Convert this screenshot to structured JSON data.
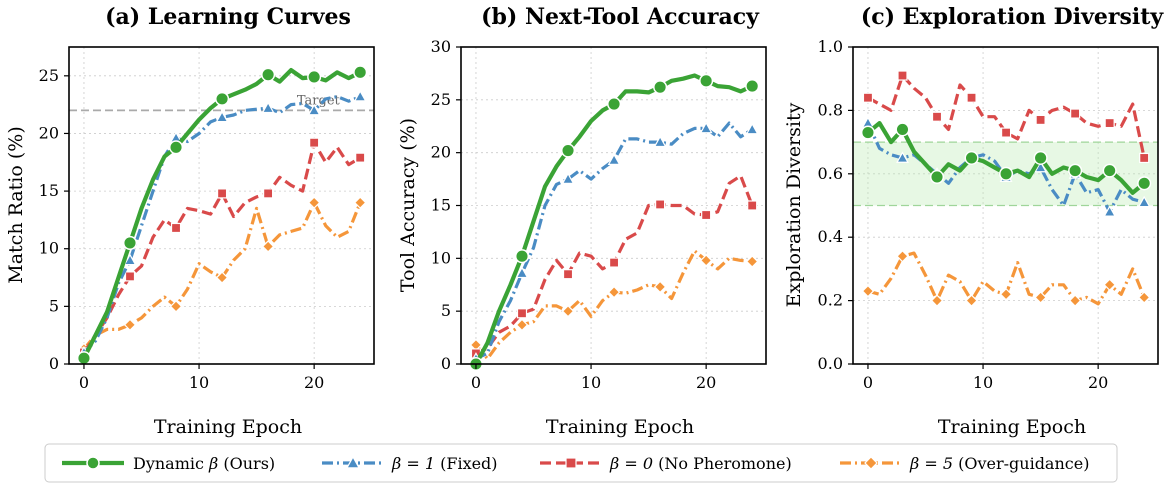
{
  "colors": {
    "dynamic": "#3aa335",
    "fixed": "#4a8cc4",
    "nophero": "#d94a4a",
    "over": "#f5963a",
    "target": "#aaaaaa",
    "band": "#b9eab1"
  },
  "legend": {
    "items": [
      {
        "key": "dynamic",
        "symbol": "Dynamic ",
        "math": "β",
        "note": " (Ours)",
        "marker": "circle",
        "dash": "solid"
      },
      {
        "key": "fixed",
        "symbol": "",
        "math": "β = 1",
        "note": " (Fixed)",
        "marker": "triangle",
        "dash": "dashdot"
      },
      {
        "key": "nophero",
        "symbol": "",
        "math": "β = 0",
        "note": " (No Pheromone)",
        "marker": "square",
        "dash": "dashed"
      },
      {
        "key": "over",
        "symbol": "",
        "math": "β = 5",
        "note": " (Over-guidance)",
        "marker": "diamond",
        "dash": "dashdot"
      }
    ]
  },
  "chart_data": [
    {
      "type": "line",
      "title": "(a) Learning Curves",
      "xlabel": "Training Epoch",
      "ylabel": "Match Ratio (%)",
      "xlim": [
        -1.3,
        25.2
      ],
      "ylim": [
        0,
        27.5
      ],
      "xticks": [
        0,
        10,
        20
      ],
      "yticks": [
        0,
        5,
        10,
        15,
        20,
        25
      ],
      "grid": true,
      "target": {
        "y": 22,
        "label": "Target"
      },
      "x": [
        0,
        1,
        2,
        3,
        4,
        5,
        6,
        7,
        8,
        9,
        10,
        11,
        12,
        13,
        14,
        15,
        16,
        17,
        18,
        19,
        20,
        21,
        22,
        23,
        24
      ],
      "series": [
        {
          "key": "dynamic",
          "markers_every": 4,
          "values": [
            0.5,
            2.5,
            4.5,
            7.5,
            10.5,
            13.5,
            16,
            18,
            18.8,
            20,
            21.2,
            22.2,
            23,
            23.4,
            23.8,
            24.3,
            25.1,
            24.5,
            25.5,
            24.8,
            24.9,
            24.6,
            25.3,
            24.8,
            25.3
          ]
        },
        {
          "key": "fixed",
          "markers_every": 4,
          "values": [
            1,
            2,
            4,
            7,
            9,
            12,
            15,
            18,
            19.6,
            19.3,
            20,
            21,
            21.4,
            21.6,
            22,
            22.1,
            22.2,
            21.8,
            22.5,
            22.6,
            22,
            23,
            23.2,
            22.8,
            23.2
          ]
        },
        {
          "key": "nophero",
          "markers_every": 4,
          "values": [
            1,
            2.5,
            4,
            6,
            7.6,
            8.5,
            11,
            12.5,
            11.8,
            13.5,
            13.3,
            13,
            14.8,
            12.8,
            14,
            14.5,
            14.8,
            16.2,
            15.5,
            15,
            19.2,
            17.5,
            18.8,
            17.3,
            17.9
          ]
        },
        {
          "key": "over",
          "markers_every": 4,
          "values": [
            1.3,
            2.5,
            3,
            3,
            3.4,
            4,
            5,
            5.8,
            5,
            6.5,
            8.7,
            8,
            7.5,
            9,
            10,
            13.5,
            10.2,
            11.2,
            11.5,
            11.8,
            14,
            12,
            11,
            11.5,
            14
          ]
        }
      ]
    },
    {
      "type": "line",
      "title": "(b) Next-Tool Accuracy",
      "xlabel": "Training Epoch",
      "ylabel": "Tool Accuracy (%)",
      "xlim": [
        -1.3,
        25.2
      ],
      "ylim": [
        0,
        30
      ],
      "xticks": [
        0,
        10,
        20
      ],
      "yticks": [
        0,
        5,
        10,
        15,
        20,
        25,
        30
      ],
      "grid": true,
      "x": [
        0,
        1,
        2,
        3,
        4,
        5,
        6,
        7,
        8,
        9,
        10,
        11,
        12,
        13,
        14,
        15,
        16,
        17,
        18,
        19,
        20,
        21,
        22,
        23,
        24
      ],
      "series": [
        {
          "key": "dynamic",
          "markers_every": 4,
          "values": [
            0,
            2,
            5,
            7.5,
            10.2,
            13.5,
            16.8,
            18.7,
            20.2,
            21.5,
            23,
            24,
            24.6,
            25.8,
            25.8,
            25.7,
            26.2,
            26.8,
            27,
            27.3,
            26.8,
            26.3,
            26.2,
            25.8,
            26.3
          ]
        },
        {
          "key": "fixed",
          "markers_every": 4,
          "values": [
            0.5,
            1,
            4,
            6,
            8.6,
            11,
            15,
            17,
            17.5,
            18.3,
            17.5,
            18.5,
            19.3,
            21.3,
            21.3,
            21,
            21,
            20.8,
            21.8,
            22.3,
            22.3,
            21.5,
            22.8,
            21.5,
            22.2
          ]
        },
        {
          "key": "nophero",
          "markers_every": 4,
          "values": [
            1,
            1.5,
            3,
            3.6,
            4.8,
            5.2,
            8,
            9.8,
            8.5,
            10.5,
            10.2,
            9,
            9.6,
            11.8,
            12.4,
            15,
            15.1,
            15,
            15,
            14.2,
            14.1,
            14.4,
            17.1,
            17.8,
            15
          ]
        },
        {
          "key": "over",
          "markers_every": 4,
          "values": [
            1.8,
            0.5,
            2,
            3,
            3.7,
            4,
            5.5,
            5.5,
            5,
            6,
            4.5,
            6,
            6.8,
            6.7,
            7,
            7.5,
            7.3,
            6.2,
            8.6,
            10.7,
            9.8,
            9,
            10,
            9.8,
            9.7
          ]
        }
      ]
    },
    {
      "type": "line",
      "title": "(c) Exploration Diversity",
      "xlabel": "Training Epoch",
      "ylabel": "Exploration Diversity",
      "xlim": [
        -1.3,
        25.2
      ],
      "ylim": [
        0,
        1
      ],
      "xticks": [
        0,
        10,
        20
      ],
      "yticks": [
        0.0,
        0.2,
        0.4,
        0.6,
        0.8,
        1.0
      ],
      "ytick_labels": [
        "0.0",
        "0.2",
        "0.4",
        "0.6",
        "0.8",
        "1.0"
      ],
      "grid": true,
      "band": [
        0.5,
        0.7
      ],
      "x": [
        0,
        1,
        2,
        3,
        4,
        5,
        6,
        7,
        8,
        9,
        10,
        11,
        12,
        13,
        14,
        15,
        16,
        17,
        18,
        19,
        20,
        21,
        22,
        23,
        24
      ],
      "series": [
        {
          "key": "dynamic",
          "markers_every": 3,
          "values": [
            0.73,
            0.76,
            0.7,
            0.74,
            0.67,
            0.63,
            0.59,
            0.63,
            0.61,
            0.65,
            0.64,
            0.62,
            0.6,
            0.61,
            0.59,
            0.65,
            0.6,
            0.62,
            0.61,
            0.59,
            0.58,
            0.61,
            0.58,
            0.54,
            0.57
          ]
        },
        {
          "key": "fixed",
          "markers_every": 3,
          "values": [
            0.76,
            0.68,
            0.66,
            0.65,
            0.66,
            0.63,
            0.6,
            0.57,
            0.62,
            0.65,
            0.66,
            0.64,
            0.59,
            0.61,
            0.6,
            0.62,
            0.55,
            0.5,
            0.6,
            0.54,
            0.55,
            0.48,
            0.55,
            0.52,
            0.51
          ]
        },
        {
          "key": "nophero",
          "markers_every": 3,
          "values": [
            0.84,
            0.82,
            0.8,
            0.91,
            0.87,
            0.84,
            0.78,
            0.74,
            0.88,
            0.84,
            0.78,
            0.78,
            0.73,
            0.71,
            0.8,
            0.77,
            0.8,
            0.81,
            0.79,
            0.76,
            0.75,
            0.76,
            0.75,
            0.82,
            0.65
          ]
        },
        {
          "key": "over",
          "markers_every": 3,
          "values": [
            0.23,
            0.22,
            0.27,
            0.34,
            0.35,
            0.28,
            0.2,
            0.28,
            0.26,
            0.2,
            0.26,
            0.23,
            0.22,
            0.32,
            0.22,
            0.21,
            0.25,
            0.25,
            0.2,
            0.21,
            0.19,
            0.25,
            0.22,
            0.3,
            0.21
          ]
        }
      ]
    }
  ]
}
